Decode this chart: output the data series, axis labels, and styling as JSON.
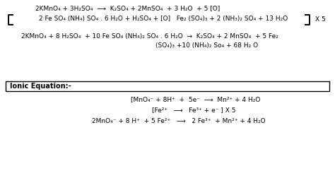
{
  "bg_color": "#ffffff",
  "text_color": "#000000",
  "line1": "2KMnO₄ + 3H₂SO₄  ⟶  K₂SO₄ + 2MnSO₄  + 3 H₂O  + 5 [O]",
  "bracket_line": "2 Fe SO₄ (NH₄) SO₄ . 6 H₂O + H₂SO₄ + [O]   Fe₂ (SO₄)₃ + 2 (NH₃)₂ SO₄ + 13 H₂O",
  "x5_label": "X 5",
  "line3": "2KMnO₄ + 8 H₂SO₄  + 10 Fe SO₄ (NH₄)₂ SO₄ . 6 H₂O  →  K₂SO₄ + 2 MnSO₄  + 5 Fe₂",
  "line4": "(SO₄)₃ +10 (NH₄)₂ So₄ + 68 H₂ O",
  "ionic_label": "Ionic Equation:-",
  "ionic1": "[MnO₄⁻ + 8H⁺  +  5e⁻  ⟶  Mn²⁺ + 4 H₂O",
  "ionic2": "[Fe²⁺   ⟶   Fe³⁺ + e⁻ ] X 5",
  "ionic3": "2MnO₄⁻ + 8 H⁺  + 5 Fe²⁺   ⟶   2 Fe³⁺  + Mn²⁺ + 4 H₂O",
  "figsize": [
    4.74,
    2.59
  ],
  "dpi": 100
}
